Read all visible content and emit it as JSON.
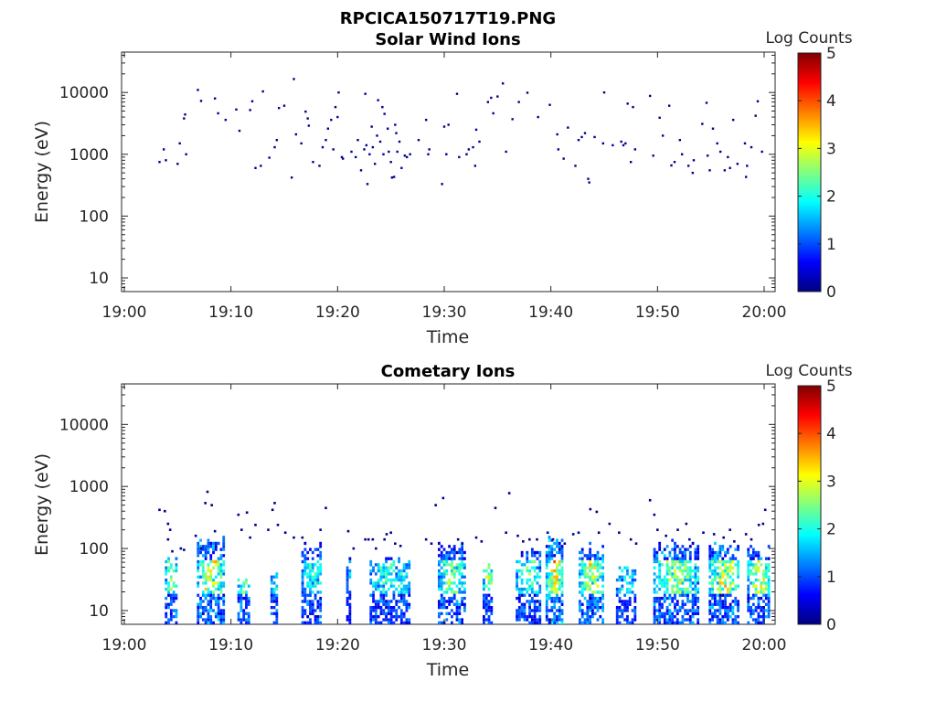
{
  "figure_title": "RPCICA150717T19.PNG",
  "colors": {
    "solar_wind_dot": "#00008f",
    "axis": "#262626",
    "colormap": [
      "#000080",
      "#0000ff",
      "#0080ff",
      "#00ffff",
      "#80ff80",
      "#ffff00",
      "#ff8000",
      "#ff0000",
      "#800000"
    ]
  },
  "chart_data": [
    {
      "type": "heatmap",
      "title": "Solar Wind Ions",
      "xlabel": "Time",
      "ylabel": "Energy (eV)",
      "x_range": [
        "19:00",
        "20:00"
      ],
      "y_range": [
        6,
        45000
      ],
      "y_scale": "log",
      "x_ticks": [
        "19:00",
        "19:10",
        "19:20",
        "19:30",
        "19:40",
        "19:50",
        "20:00"
      ],
      "y_ticks": [
        "10",
        "100",
        "1000",
        "10000"
      ],
      "colorbar": {
        "label": "Log Counts",
        "range": [
          0,
          5
        ],
        "ticks": [
          "0",
          "1",
          "2",
          "3",
          "4",
          "5"
        ]
      },
      "points": [
        {
          "t": 3.3,
          "e": 750
        },
        {
          "t": 3.7,
          "e": 1200
        },
        {
          "t": 3.9,
          "e": 800
        },
        {
          "t": 5.0,
          "e": 700
        },
        {
          "t": 5.2,
          "e": 1500
        },
        {
          "t": 5.6,
          "e": 3800
        },
        {
          "t": 5.7,
          "e": 4400
        },
        {
          "t": 5.8,
          "e": 1000
        },
        {
          "t": 6.9,
          "e": 11000
        },
        {
          "t": 7.2,
          "e": 7300
        },
        {
          "t": 8.5,
          "e": 8000
        },
        {
          "t": 8.8,
          "e": 4600
        },
        {
          "t": 9.5,
          "e": 3600
        },
        {
          "t": 10.5,
          "e": 5300
        },
        {
          "t": 10.8,
          "e": 2400
        },
        {
          "t": 11.8,
          "e": 5200
        },
        {
          "t": 12.0,
          "e": 7200
        },
        {
          "t": 12.3,
          "e": 600
        },
        {
          "t": 12.8,
          "e": 650
        },
        {
          "t": 13.0,
          "e": 10400
        },
        {
          "t": 13.6,
          "e": 880
        },
        {
          "t": 14.1,
          "e": 1300
        },
        {
          "t": 14.3,
          "e": 1700
        },
        {
          "t": 14.5,
          "e": 5600
        },
        {
          "t": 15.0,
          "e": 6100
        },
        {
          "t": 15.7,
          "e": 420
        },
        {
          "t": 15.9,
          "e": 16500
        },
        {
          "t": 16.1,
          "e": 2100
        },
        {
          "t": 16.6,
          "e": 1500
        },
        {
          "t": 17.0,
          "e": 4900
        },
        {
          "t": 17.2,
          "e": 3800
        },
        {
          "t": 17.3,
          "e": 2900
        },
        {
          "t": 17.7,
          "e": 750
        },
        {
          "t": 18.3,
          "e": 650
        },
        {
          "t": 18.6,
          "e": 1300
        },
        {
          "t": 18.9,
          "e": 1700
        },
        {
          "t": 19.1,
          "e": 2600
        },
        {
          "t": 19.4,
          "e": 3600
        },
        {
          "t": 19.6,
          "e": 1200
        },
        {
          "t": 19.8,
          "e": 5800
        },
        {
          "t": 20.0,
          "e": 4000
        },
        {
          "t": 20.1,
          "e": 10000
        },
        {
          "t": 20.4,
          "e": 900
        },
        {
          "t": 20.5,
          "e": 850
        },
        {
          "t": 21.3,
          "e": 1100
        },
        {
          "t": 21.7,
          "e": 900
        },
        {
          "t": 21.9,
          "e": 1700
        },
        {
          "t": 22.2,
          "e": 550
        },
        {
          "t": 22.5,
          "e": 1200
        },
        {
          "t": 22.6,
          "e": 9500
        },
        {
          "t": 22.7,
          "e": 1400
        },
        {
          "t": 22.8,
          "e": 330
        },
        {
          "t": 23.0,
          "e": 1000
        },
        {
          "t": 23.2,
          "e": 2800
        },
        {
          "t": 23.3,
          "e": 1300
        },
        {
          "t": 23.5,
          "e": 700
        },
        {
          "t": 23.7,
          "e": 2000
        },
        {
          "t": 23.8,
          "e": 7500
        },
        {
          "t": 24.0,
          "e": 1600
        },
        {
          "t": 24.2,
          "e": 5800
        },
        {
          "t": 24.3,
          "e": 1000
        },
        {
          "t": 24.4,
          "e": 4500
        },
        {
          "t": 24.7,
          "e": 2600
        },
        {
          "t": 24.8,
          "e": 1100
        },
        {
          "t": 25.0,
          "e": 750
        },
        {
          "t": 25.1,
          "e": 420
        },
        {
          "t": 25.3,
          "e": 430
        },
        {
          "t": 25.4,
          "e": 3000
        },
        {
          "t": 25.5,
          "e": 2200
        },
        {
          "t": 25.6,
          "e": 1100
        },
        {
          "t": 25.8,
          "e": 1600
        },
        {
          "t": 26.0,
          "e": 600
        },
        {
          "t": 26.3,
          "e": 950
        },
        {
          "t": 26.5,
          "e": 900
        },
        {
          "t": 26.8,
          "e": 1000
        },
        {
          "t": 27.6,
          "e": 1700
        },
        {
          "t": 28.3,
          "e": 3600
        },
        {
          "t": 28.5,
          "e": 1000
        },
        {
          "t": 28.6,
          "e": 1200
        },
        {
          "t": 29.8,
          "e": 330
        },
        {
          "t": 30.0,
          "e": 2800
        },
        {
          "t": 30.2,
          "e": 1000
        },
        {
          "t": 30.4,
          "e": 3000
        },
        {
          "t": 31.2,
          "e": 9500
        },
        {
          "t": 31.4,
          "e": 900
        },
        {
          "t": 32.1,
          "e": 1000
        },
        {
          "t": 32.3,
          "e": 1200
        },
        {
          "t": 32.7,
          "e": 1300
        },
        {
          "t": 32.9,
          "e": 650
        },
        {
          "t": 33.0,
          "e": 2500
        },
        {
          "t": 33.3,
          "e": 1600
        },
        {
          "t": 34.1,
          "e": 7000
        },
        {
          "t": 34.4,
          "e": 8200
        },
        {
          "t": 34.6,
          "e": 4600
        },
        {
          "t": 35.0,
          "e": 8600
        },
        {
          "t": 35.5,
          "e": 14000
        },
        {
          "t": 35.8,
          "e": 1100
        },
        {
          "t": 36.4,
          "e": 3700
        },
        {
          "t": 37.0,
          "e": 7000
        },
        {
          "t": 37.8,
          "e": 9900
        },
        {
          "t": 38.8,
          "e": 4000
        },
        {
          "t": 39.9,
          "e": 6300
        },
        {
          "t": 40.6,
          "e": 2100
        },
        {
          "t": 40.7,
          "e": 1200
        },
        {
          "t": 41.2,
          "e": 850
        },
        {
          "t": 41.6,
          "e": 2700
        },
        {
          "t": 42.3,
          "e": 650
        },
        {
          "t": 42.6,
          "e": 1700
        },
        {
          "t": 42.9,
          "e": 1900
        },
        {
          "t": 43.2,
          "e": 2200
        },
        {
          "t": 43.5,
          "e": 400
        },
        {
          "t": 43.6,
          "e": 350
        },
        {
          "t": 44.1,
          "e": 1900
        },
        {
          "t": 44.9,
          "e": 1500
        },
        {
          "t": 45.0,
          "e": 10000
        },
        {
          "t": 45.8,
          "e": 1400
        },
        {
          "t": 46.6,
          "e": 1600
        },
        {
          "t": 46.8,
          "e": 1400
        },
        {
          "t": 47.0,
          "e": 1500
        },
        {
          "t": 47.2,
          "e": 6600
        },
        {
          "t": 47.5,
          "e": 750
        },
        {
          "t": 47.7,
          "e": 5800
        },
        {
          "t": 47.9,
          "e": 1200
        },
        {
          "t": 49.3,
          "e": 8800
        },
        {
          "t": 49.6,
          "e": 950
        },
        {
          "t": 50.2,
          "e": 3900
        },
        {
          "t": 50.5,
          "e": 2000
        },
        {
          "t": 51.1,
          "e": 6100
        },
        {
          "t": 51.3,
          "e": 660
        },
        {
          "t": 51.6,
          "e": 750
        },
        {
          "t": 52.1,
          "e": 1700
        },
        {
          "t": 52.3,
          "e": 1000
        },
        {
          "t": 52.9,
          "e": 650
        },
        {
          "t": 53.3,
          "e": 500
        },
        {
          "t": 53.4,
          "e": 800
        },
        {
          "t": 54.2,
          "e": 3100
        },
        {
          "t": 54.6,
          "e": 6800
        },
        {
          "t": 54.7,
          "e": 950
        },
        {
          "t": 54.9,
          "e": 550
        },
        {
          "t": 55.2,
          "e": 2600
        },
        {
          "t": 55.6,
          "e": 1500
        },
        {
          "t": 55.9,
          "e": 1100
        },
        {
          "t": 56.3,
          "e": 550
        },
        {
          "t": 56.6,
          "e": 900
        },
        {
          "t": 56.8,
          "e": 600
        },
        {
          "t": 57.1,
          "e": 3600
        },
        {
          "t": 57.5,
          "e": 700
        },
        {
          "t": 58.2,
          "e": 1500
        },
        {
          "t": 58.3,
          "e": 430
        },
        {
          "t": 58.4,
          "e": 650
        },
        {
          "t": 58.8,
          "e": 1300
        },
        {
          "t": 59.2,
          "e": 4200
        },
        {
          "t": 59.4,
          "e": 7200
        },
        {
          "t": 59.8,
          "e": 1100
        }
      ]
    },
    {
      "type": "heatmap",
      "title": "Cometary Ions",
      "xlabel": "Time",
      "ylabel": "Energy (eV)",
      "x_range": [
        "19:00",
        "20:00"
      ],
      "y_range": [
        6,
        45000
      ],
      "y_scale": "log",
      "x_ticks": [
        "19:00",
        "19:10",
        "19:20",
        "19:30",
        "19:40",
        "19:50",
        "20:00"
      ],
      "y_ticks": [
        "10",
        "100",
        "1000",
        "10000"
      ],
      "colorbar": {
        "label": "Log Counts",
        "range": [
          0,
          5
        ],
        "ticks": [
          "0",
          "1",
          "2",
          "3",
          "4",
          "5"
        ]
      },
      "scatter_points": [
        {
          "t": 3.3,
          "e": 420
        },
        {
          "t": 3.8,
          "e": 400
        },
        {
          "t": 4.1,
          "e": 250
        },
        {
          "t": 4.3,
          "e": 200
        },
        {
          "t": 4.1,
          "e": 140
        },
        {
          "t": 4.5,
          "e": 90
        },
        {
          "t": 5.3,
          "e": 100
        },
        {
          "t": 5.6,
          "e": 95
        },
        {
          "t": 6.7,
          "e": 160
        },
        {
          "t": 7.2,
          "e": 100
        },
        {
          "t": 7.6,
          "e": 540
        },
        {
          "t": 7.8,
          "e": 820
        },
        {
          "t": 8.2,
          "e": 500
        },
        {
          "t": 8.5,
          "e": 190
        },
        {
          "t": 10.7,
          "e": 350
        },
        {
          "t": 11.0,
          "e": 200
        },
        {
          "t": 11.5,
          "e": 380
        },
        {
          "t": 11.8,
          "e": 150
        },
        {
          "t": 12.3,
          "e": 240
        },
        {
          "t": 13.5,
          "e": 200
        },
        {
          "t": 13.9,
          "e": 420
        },
        {
          "t": 14.1,
          "e": 540
        },
        {
          "t": 14.4,
          "e": 240
        },
        {
          "t": 15.1,
          "e": 180
        },
        {
          "t": 15.9,
          "e": 150
        },
        {
          "t": 16.7,
          "e": 150
        },
        {
          "t": 18.4,
          "e": 200
        },
        {
          "t": 18.9,
          "e": 450
        },
        {
          "t": 21.0,
          "e": 190
        },
        {
          "t": 21.5,
          "e": 100
        },
        {
          "t": 22.6,
          "e": 140
        },
        {
          "t": 22.9,
          "e": 140
        },
        {
          "t": 23.3,
          "e": 140
        },
        {
          "t": 23.6,
          "e": 100
        },
        {
          "t": 24.6,
          "e": 170
        },
        {
          "t": 25.0,
          "e": 180
        },
        {
          "t": 24.4,
          "e": 140
        },
        {
          "t": 25.4,
          "e": 120
        },
        {
          "t": 25.9,
          "e": 110
        },
        {
          "t": 28.3,
          "e": 140
        },
        {
          "t": 28.8,
          "e": 120
        },
        {
          "t": 29.2,
          "e": 500
        },
        {
          "t": 29.9,
          "e": 650
        },
        {
          "t": 31.3,
          "e": 140
        },
        {
          "t": 31.7,
          "e": 120
        },
        {
          "t": 33.0,
          "e": 150
        },
        {
          "t": 33.5,
          "e": 130
        },
        {
          "t": 34.8,
          "e": 450
        },
        {
          "t": 35.8,
          "e": 180
        },
        {
          "t": 36.1,
          "e": 780
        },
        {
          "t": 36.9,
          "e": 160
        },
        {
          "t": 37.4,
          "e": 130
        },
        {
          "t": 38.0,
          "e": 140
        },
        {
          "t": 38.7,
          "e": 140
        },
        {
          "t": 39.7,
          "e": 180
        },
        {
          "t": 40.2,
          "e": 140
        },
        {
          "t": 41.3,
          "e": 120
        },
        {
          "t": 42.1,
          "e": 170
        },
        {
          "t": 42.6,
          "e": 180
        },
        {
          "t": 43.7,
          "e": 430
        },
        {
          "t": 44.3,
          "e": 390
        },
        {
          "t": 44.5,
          "e": 180
        },
        {
          "t": 45.5,
          "e": 250
        },
        {
          "t": 46.4,
          "e": 180
        },
        {
          "t": 47.5,
          "e": 140
        },
        {
          "t": 48.0,
          "e": 120
        },
        {
          "t": 49.3,
          "e": 600
        },
        {
          "t": 49.7,
          "e": 350
        },
        {
          "t": 50.0,
          "e": 200
        },
        {
          "t": 50.8,
          "e": 160
        },
        {
          "t": 51.9,
          "e": 200
        },
        {
          "t": 52.7,
          "e": 250
        },
        {
          "t": 53.0,
          "e": 140
        },
        {
          "t": 54.3,
          "e": 180
        },
        {
          "t": 55.3,
          "e": 170
        },
        {
          "t": 56.2,
          "e": 150
        },
        {
          "t": 56.8,
          "e": 200
        },
        {
          "t": 57.2,
          "e": 130
        },
        {
          "t": 58.3,
          "e": 170
        },
        {
          "t": 58.8,
          "e": 140
        },
        {
          "t": 59.5,
          "e": 240
        },
        {
          "t": 59.9,
          "e": 250
        },
        {
          "t": 60.1,
          "e": 420
        }
      ],
      "bursts": [
        {
          "t0": 3.8,
          "t1": 4.8,
          "top": 65,
          "peak": 2.2
        },
        {
          "t0": 6.8,
          "t1": 9.3,
          "top": 130,
          "peak": 2.6
        },
        {
          "t0": 10.6,
          "t1": 11.8,
          "top": 35,
          "peak": 2.2
        },
        {
          "t0": 13.7,
          "t1": 14.4,
          "top": 35,
          "peak": 1.4
        },
        {
          "t0": 16.6,
          "t1": 18.5,
          "top": 90,
          "peak": 1.6
        },
        {
          "t0": 20.8,
          "t1": 21.2,
          "top": 60,
          "peak": 1.0
        },
        {
          "t0": 23.0,
          "t1": 26.7,
          "top": 55,
          "peak": 1.6
        },
        {
          "t0": 29.4,
          "t1": 31.8,
          "top": 110,
          "peak": 2.0
        },
        {
          "t0": 33.6,
          "t1": 34.5,
          "top": 45,
          "peak": 2.3
        },
        {
          "t0": 36.7,
          "t1": 38.9,
          "top": 80,
          "peak": 1.8
        },
        {
          "t0": 39.5,
          "t1": 41.0,
          "top": 140,
          "peak": 2.9
        },
        {
          "t0": 42.6,
          "t1": 44.9,
          "top": 90,
          "peak": 2.4
        },
        {
          "t0": 46.1,
          "t1": 47.8,
          "top": 45,
          "peak": 1.4
        },
        {
          "t0": 49.6,
          "t1": 53.8,
          "top": 110,
          "peak": 2.2
        },
        {
          "t0": 54.8,
          "t1": 57.6,
          "top": 100,
          "peak": 2.5
        },
        {
          "t0": 58.4,
          "t1": 60.5,
          "top": 90,
          "peak": 2.3
        }
      ]
    }
  ]
}
